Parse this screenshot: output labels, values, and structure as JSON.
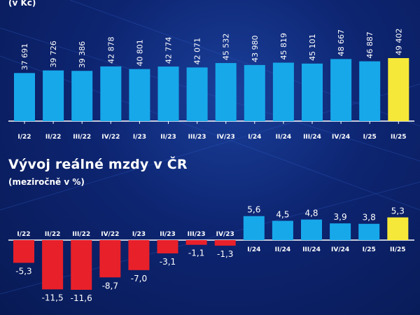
{
  "chart_data": [
    {
      "type": "bar",
      "title": "",
      "subtitle": "(v Kč)",
      "categories": [
        "I/22",
        "II/22",
        "III/22",
        "IV/22",
        "I/23",
        "II/23",
        "III/23",
        "IV/23",
        "I/24",
        "II/24",
        "III/24",
        "IV/24",
        "I/25",
        "II/25"
      ],
      "value_labels": [
        "37 691",
        "39 726",
        "39 386",
        "42 878",
        "40 801",
        "42 774",
        "42 071",
        "45 532",
        "43 980",
        "45 819",
        "45 101",
        "48 667",
        "46 887",
        "49 402"
      ],
      "values": [
        37691,
        39726,
        39386,
        42878,
        40801,
        42774,
        42071,
        45532,
        43980,
        45819,
        45101,
        48667,
        46887,
        49402
      ],
      "colors": {
        "bar": "#17a8ea",
        "highlight": "#f6e838",
        "axis": "#ffffff"
      },
      "highlight_index": 13
    },
    {
      "type": "bar",
      "title": "Vývoj reálné mzdy v ČR",
      "subtitle": "(meziročně v %)",
      "categories": [
        "I/22",
        "II/22",
        "III/22",
        "IV/22",
        "I/23",
        "II/23",
        "III/23",
        "IV/23",
        "I/24",
        "II/24",
        "III/24",
        "IV/24",
        "I/25",
        "II/25"
      ],
      "value_labels": [
        "-5,3",
        "-11,5",
        "-11,6",
        "-8,7",
        "-7,0",
        "-3,1",
        "-1,1",
        "-1,3",
        "5,6",
        "4,5",
        "4,8",
        "3,9",
        "3,8",
        "5,3"
      ],
      "values": [
        -5.3,
        -11.5,
        -11.6,
        -8.7,
        -7.0,
        -3.1,
        -1.1,
        -1.3,
        5.6,
        4.5,
        4.8,
        3.9,
        3.8,
        5.3
      ],
      "colors": {
        "positive": "#17a8ea",
        "negative": "#e8202a",
        "highlight": "#f6e838",
        "axis": "#ffffff"
      },
      "highlight_index": 13
    }
  ]
}
